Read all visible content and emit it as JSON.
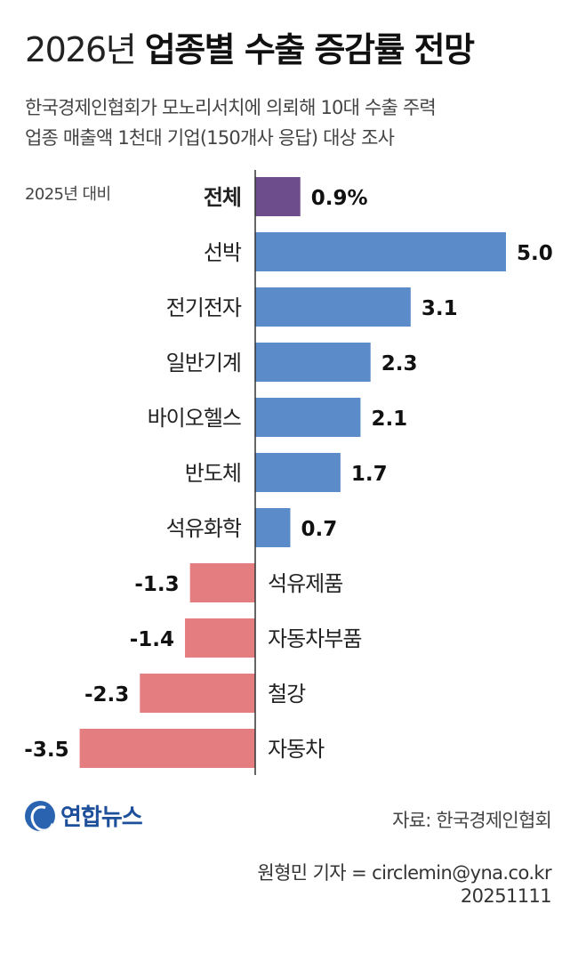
{
  "header": {
    "title_year": "2026년",
    "title_main": "업종별 수출 증감률 전망",
    "subtitle_line1": "한국경제인협회가 모노리서치에 의뢰해 10대 수출 주력",
    "subtitle_line2": "업종 매출액 1천대 기업(150개사 응답) 대상 조사"
  },
  "chart_data": {
    "type": "bar",
    "orientation": "horizontal",
    "basis_label": "2025년 대비",
    "categories": [
      "전체",
      "선박",
      "전기전자",
      "일반기계",
      "바이오헬스",
      "반도체",
      "석유화학",
      "석유제품",
      "자동차부품",
      "철강",
      "자동차"
    ],
    "values": [
      0.9,
      5.0,
      3.1,
      2.3,
      2.1,
      1.7,
      0.7,
      -1.3,
      -1.4,
      -2.3,
      -3.5
    ],
    "value_labels": [
      "0.9%",
      "5.0",
      "3.1",
      "2.3",
      "2.1",
      "1.7",
      "0.7",
      "-1.3",
      "-1.4",
      "-2.3",
      "-3.5"
    ],
    "colors": {
      "total": "#6e4d8c",
      "positive": "#5b8bc9",
      "negative": "#e37d7f",
      "axis": "#333333"
    },
    "xlim": [
      -3.5,
      5.0
    ]
  },
  "footer": {
    "logo_text": "연합뉴스",
    "source": "자료: 한국경제인협회",
    "reporter": "원형민 기자 = circlemin@yna.co.kr",
    "date": "20251111"
  }
}
